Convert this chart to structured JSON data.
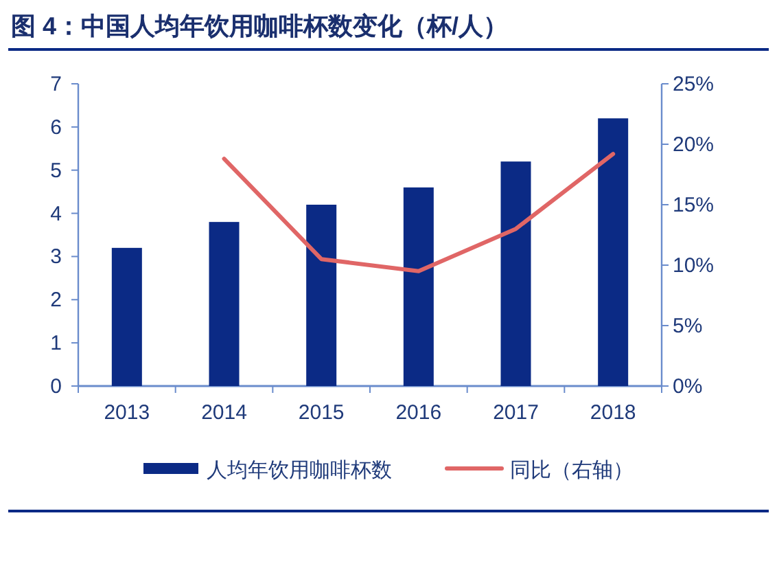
{
  "chart_data": {
    "type": "bar",
    "title": "图 4：中国人均年饮用咖啡杯数变化（杯/人）",
    "categories": [
      "2013",
      "2014",
      "2015",
      "2016",
      "2017",
      "2018"
    ],
    "series": [
      {
        "name": "人均年饮用咖啡杯数",
        "color": "#0b2a85",
        "values": [
          3.2,
          3.8,
          4.2,
          4.6,
          5.2,
          6.2
        ]
      },
      {
        "name": "同比（右轴）",
        "type": "line",
        "axis": "y2",
        "color": "#e06666",
        "values": [
          null,
          18.8,
          10.5,
          9.5,
          13.0,
          19.2
        ]
      }
    ],
    "ylim": [
      0,
      7
    ],
    "yticks": [
      0,
      1,
      2,
      3,
      4,
      5,
      6,
      7
    ],
    "y2lim": [
      0,
      25
    ],
    "y2ticks": [
      {
        "value": 0,
        "label": "0%"
      },
      {
        "value": 5,
        "label": "5%"
      },
      {
        "value": 10,
        "label": "10%"
      },
      {
        "value": 15,
        "label": "15%"
      },
      {
        "value": 20,
        "label": "20%"
      },
      {
        "value": 25,
        "label": "25%"
      }
    ],
    "legend": "bottom",
    "grid": false,
    "marker": "none"
  }
}
